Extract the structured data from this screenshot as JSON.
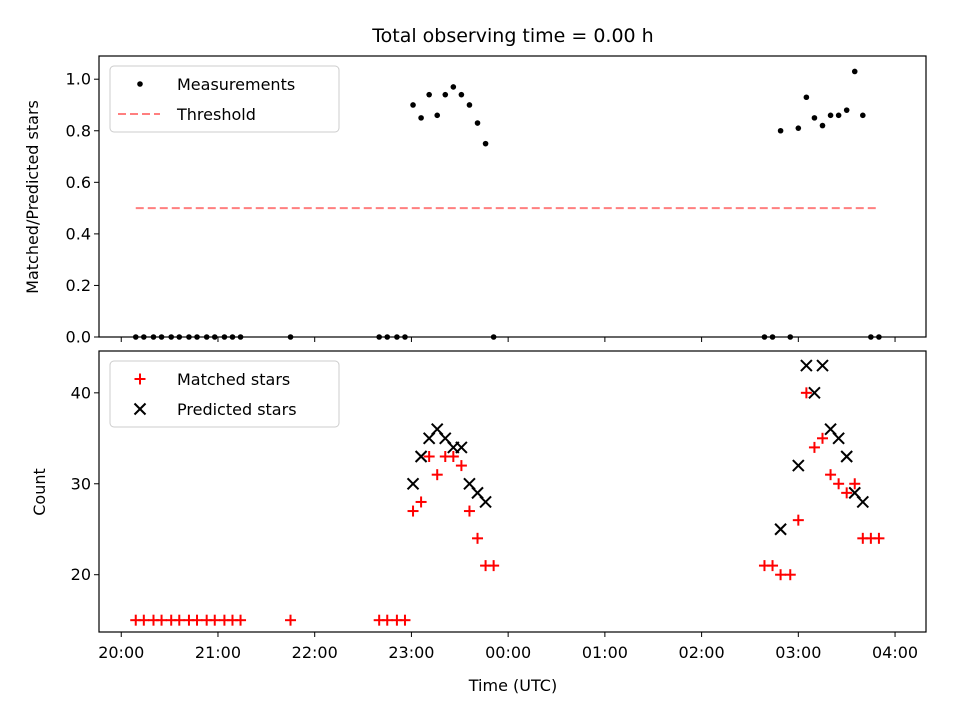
{
  "chart_data": [
    {
      "type": "scatter",
      "title": "Total observing time = 0.00 h",
      "xlabel": "",
      "ylabel": "Matched/Predicted stars",
      "xlim_hours": [
        19.77,
        28.32
      ],
      "ylim": [
        0.0,
        1.09
      ],
      "yticks": [
        0.0,
        0.2,
        0.4,
        0.6,
        0.8,
        1.0
      ],
      "ytick_labels": [
        "0.0",
        "0.2",
        "0.4",
        "0.6",
        "0.8",
        "1.0"
      ],
      "xtick_labels_shown": false,
      "grid": false,
      "legend": {
        "position": "top-left",
        "entries": [
          "Measurements",
          "Threshold"
        ]
      },
      "series": [
        {
          "name": "Measurements",
          "marker": "dot",
          "color": "#000000",
          "points": [
            [
              "20:09",
              0.0
            ],
            [
              "20:14",
              0.0
            ],
            [
              "20:20",
              0.0
            ],
            [
              "20:25",
              0.0
            ],
            [
              "20:31",
              0.0
            ],
            [
              "20:36",
              0.0
            ],
            [
              "20:42",
              0.0
            ],
            [
              "20:47",
              0.0
            ],
            [
              "20:53",
              0.0
            ],
            [
              "20:58",
              0.0
            ],
            [
              "21:04",
              0.0
            ],
            [
              "21:09",
              0.0
            ],
            [
              "21:14",
              0.0
            ],
            [
              "21:45",
              0.0
            ],
            [
              "22:40",
              0.0
            ],
            [
              "22:45",
              0.0
            ],
            [
              "22:51",
              0.0
            ],
            [
              "22:56",
              0.0
            ],
            [
              "23:01",
              0.9
            ],
            [
              "23:06",
              0.85
            ],
            [
              "23:11",
              0.94
            ],
            [
              "23:16",
              0.86
            ],
            [
              "23:21",
              0.94
            ],
            [
              "23:26",
              0.97
            ],
            [
              "23:31",
              0.94
            ],
            [
              "23:36",
              0.9
            ],
            [
              "23:41",
              0.83
            ],
            [
              "23:46",
              0.75
            ],
            [
              "23:51",
              0.0
            ],
            [
              "02:39",
              0.0
            ],
            [
              "02:44",
              0.0
            ],
            [
              "02:49",
              0.8
            ],
            [
              "02:55",
              0.0
            ],
            [
              "03:00",
              0.81
            ],
            [
              "03:05",
              0.93
            ],
            [
              "03:10",
              0.85
            ],
            [
              "03:15",
              0.82
            ],
            [
              "03:20",
              0.86
            ],
            [
              "03:25",
              0.86
            ],
            [
              "03:30",
              0.88
            ],
            [
              "03:35",
              1.03
            ],
            [
              "03:40",
              0.86
            ],
            [
              "03:45",
              0.0
            ],
            [
              "03:50",
              0.0
            ]
          ]
        },
        {
          "name": "Threshold",
          "line": "dashed",
          "color": "#ff7f7f",
          "points": [
            [
              "20:09",
              0.5
            ],
            [
              "03:50",
              0.5
            ]
          ]
        }
      ]
    },
    {
      "type": "scatter",
      "title": "",
      "xlabel": "Time (UTC)",
      "ylabel": "Count",
      "xlim_hours": [
        19.77,
        28.32
      ],
      "ylim": [
        13.7,
        44.6
      ],
      "yticks": [
        20,
        30,
        40
      ],
      "ytick_labels": [
        "20",
        "30",
        "40"
      ],
      "xticks_hours": [
        20,
        21,
        22,
        23,
        24,
        25,
        26,
        27,
        28
      ],
      "xtick_labels": [
        "20:00",
        "21:00",
        "22:00",
        "23:00",
        "00:00",
        "01:00",
        "02:00",
        "03:00",
        "04:00"
      ],
      "grid": false,
      "legend": {
        "position": "top-left",
        "entries": [
          "Matched stars",
          "Predicted stars"
        ]
      },
      "series": [
        {
          "name": "Matched stars",
          "marker": "plus",
          "color": "#ff0000",
          "points": [
            [
              "20:09",
              15
            ],
            [
              "20:14",
              15
            ],
            [
              "20:20",
              15
            ],
            [
              "20:25",
              15
            ],
            [
              "20:31",
              15
            ],
            [
              "20:36",
              15
            ],
            [
              "20:42",
              15
            ],
            [
              "20:47",
              15
            ],
            [
              "20:53",
              15
            ],
            [
              "20:58",
              15
            ],
            [
              "21:04",
              15
            ],
            [
              "21:09",
              15
            ],
            [
              "21:14",
              15
            ],
            [
              "21:45",
              15
            ],
            [
              "22:40",
              15
            ],
            [
              "22:45",
              15
            ],
            [
              "22:51",
              15
            ],
            [
              "22:56",
              15
            ],
            [
              "23:01",
              27
            ],
            [
              "23:06",
              28
            ],
            [
              "23:11",
              33
            ],
            [
              "23:16",
              31
            ],
            [
              "23:21",
              33
            ],
            [
              "23:26",
              33
            ],
            [
              "23:31",
              32
            ],
            [
              "23:36",
              27
            ],
            [
              "23:41",
              24
            ],
            [
              "23:46",
              21
            ],
            [
              "23:51",
              21
            ],
            [
              "02:39",
              21
            ],
            [
              "02:44",
              21
            ],
            [
              "02:49",
              20
            ],
            [
              "02:55",
              20
            ],
            [
              "03:00",
              26
            ],
            [
              "03:05",
              40
            ],
            [
              "03:10",
              34
            ],
            [
              "03:15",
              35
            ],
            [
              "03:20",
              31
            ],
            [
              "03:25",
              30
            ],
            [
              "03:30",
              29
            ],
            [
              "03:35",
              30
            ],
            [
              "03:40",
              24
            ],
            [
              "03:45",
              24
            ],
            [
              "03:50",
              24
            ]
          ]
        },
        {
          "name": "Predicted stars",
          "marker": "x",
          "color": "#000000",
          "points": [
            [
              "23:01",
              30
            ],
            [
              "23:06",
              33
            ],
            [
              "23:11",
              35
            ],
            [
              "23:16",
              36
            ],
            [
              "23:21",
              35
            ],
            [
              "23:26",
              34
            ],
            [
              "23:31",
              34
            ],
            [
              "23:36",
              30
            ],
            [
              "23:41",
              29
            ],
            [
              "23:46",
              28
            ],
            [
              "02:49",
              25
            ],
            [
              "03:00",
              32
            ],
            [
              "03:05",
              43
            ],
            [
              "03:10",
              40
            ],
            [
              "03:15",
              43
            ],
            [
              "03:20",
              36
            ],
            [
              "03:25",
              35
            ],
            [
              "03:30",
              33
            ],
            [
              "03:35",
              29
            ],
            [
              "03:40",
              28
            ]
          ]
        }
      ]
    }
  ]
}
